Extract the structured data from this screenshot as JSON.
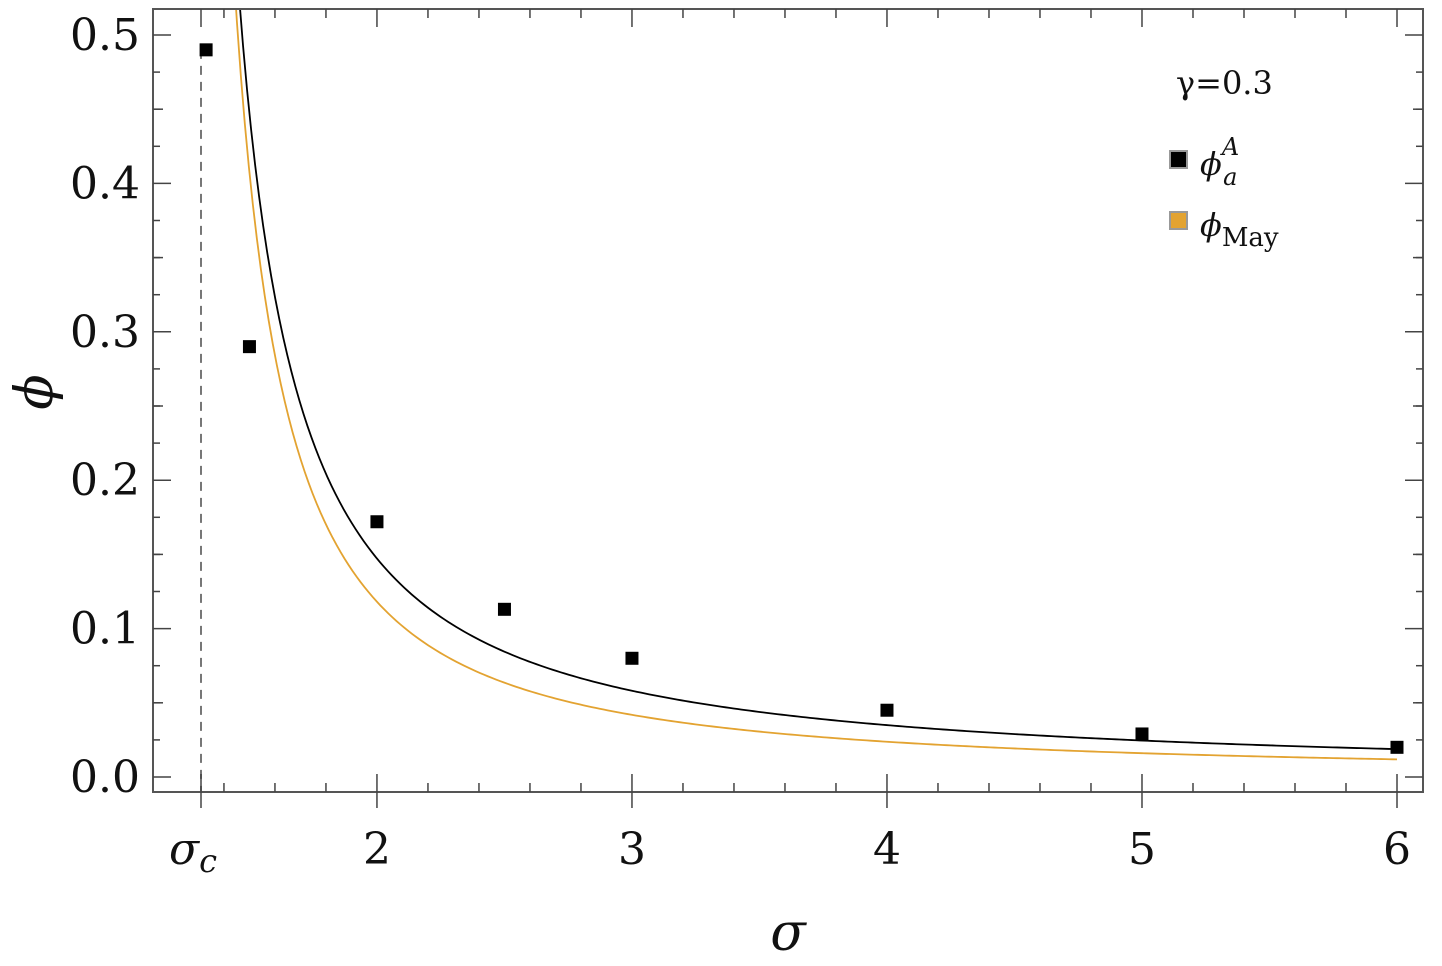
{
  "chart_data": {
    "type": "scatter",
    "xlabel": "σ",
    "ylabel": "ϕ",
    "xlim": [
      1.3,
      6.1
    ],
    "ylim": [
      -0.01,
      0.52
    ],
    "grid": false,
    "legend_position": "top-right",
    "annotation": "γ=0.3",
    "x_ticks": [
      {
        "value": 1.31,
        "label": "σ",
        "subscript": "c"
      },
      {
        "value": 2,
        "label": "2"
      },
      {
        "value": 3,
        "label": "3"
      },
      {
        "value": 4,
        "label": "4"
      },
      {
        "value": 5,
        "label": "5"
      },
      {
        "value": 6,
        "label": "6"
      }
    ],
    "y_ticks": [
      {
        "value": 0.0,
        "label": "0.0"
      },
      {
        "value": 0.1,
        "label": "0.1"
      },
      {
        "value": 0.2,
        "label": "0.2"
      },
      {
        "value": 0.3,
        "label": "0.3"
      },
      {
        "value": 0.4,
        "label": "0.4"
      },
      {
        "value": 0.5,
        "label": "0.5"
      }
    ],
    "critical_sigma": 1.31,
    "series": [
      {
        "name": "ϕ",
        "name_sub": "a",
        "name_sup": "A",
        "marker": "square",
        "color": "#000000",
        "x": [
          1.33,
          1.5,
          2,
          2.5,
          3,
          4,
          5,
          6
        ],
        "y": [
          0.49,
          0.29,
          0.172,
          0.113,
          0.08,
          0.045,
          0.029,
          0.02
        ]
      },
      {
        "name": "ϕ",
        "name_sub": "May",
        "marker": "line",
        "color": "#e3a331"
      }
    ],
    "fit_curves": [
      {
        "color": "#000000",
        "a": 0.1154,
        "p": 1.156,
        "sigma0": 1.31,
        "x_from": 1.27,
        "x_to": 6.0
      },
      {
        "color": "#e3a331",
        "a": 0.09,
        "p": 1.289,
        "sigma0": 1.31,
        "x_from": 1.31,
        "x_to": 6.0
      }
    ]
  }
}
